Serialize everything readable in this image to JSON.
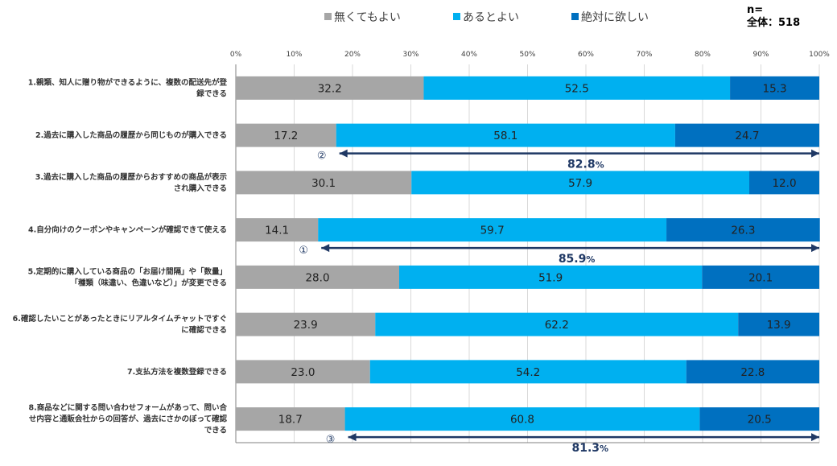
{
  "chart_data": {
    "type": "bar",
    "orientation": "horizontal",
    "stacked": "percent",
    "title": "",
    "sample": {
      "label": "n=",
      "group": "全体：518"
    },
    "xlabel": "",
    "ylabel": "",
    "xlim": [
      0,
      100
    ],
    "x_ticks": [
      "0%",
      "10%",
      "20%",
      "30%",
      "40%",
      "50%",
      "60%",
      "70%",
      "80%",
      "90%",
      "100%"
    ],
    "grid": true,
    "legend_position": "top",
    "categories": [
      [
        "1.親類、知人に贈り物ができるように、複数の配送先が登",
        "録できる"
      ],
      [
        "2.過去に購入した商品の履歴から同じものが購入できる"
      ],
      [
        "3.過去に購入した商品の履歴からおすすめの商品が表示",
        "され購入できる"
      ],
      [
        "4.自分向けのクーポンやキャンペーンが確認できて使える"
      ],
      [
        "5.定期的に購入している商品の「お届け間隔」や「数量」",
        "「種類（味違い、色違いなど）」が変更できる"
      ],
      [
        "6.確認したいことがあったときにリアルタイムチャットですぐ",
        "に確認できる"
      ],
      [
        "7.支払方法を複数登録できる"
      ],
      [
        "8.商品などに関する問い合わせフォームがあって、問い合",
        "せ内容と通販会社からの回答が、過去にさかのぼって確認",
        "できる"
      ]
    ],
    "series": [
      {
        "name": "無くてもよい",
        "color": "#a6a6a6",
        "values": [
          32.2,
          17.2,
          30.1,
          14.1,
          28.0,
          23.9,
          23.0,
          18.7
        ]
      },
      {
        "name": "あるとよい",
        "color": "#00b0f0",
        "values": [
          52.5,
          58.1,
          57.9,
          59.7,
          51.9,
          62.2,
          54.2,
          60.8
        ]
      },
      {
        "name": "絶対に欲しい",
        "color": "#0070c0",
        "values": [
          15.3,
          24.7,
          12.0,
          26.3,
          20.1,
          13.9,
          22.8,
          20.5
        ]
      }
    ],
    "value_labels": [
      [
        "32.2",
        "52.5",
        "15.3"
      ],
      [
        "17.2",
        "58.1",
        "24.7"
      ],
      [
        "30.1",
        "57.9",
        "12.0"
      ],
      [
        "14.1",
        "59.7",
        "26.3"
      ],
      [
        "28.0",
        "51.9",
        "20.1"
      ],
      [
        "23.9",
        "62.2",
        "13.9"
      ],
      [
        "23.0",
        "54.2",
        "22.8"
      ],
      [
        "18.7",
        "60.8",
        "20.5"
      ]
    ],
    "annotations": [
      {
        "row": 1,
        "rank": "②",
        "from": 17.2,
        "to": 100,
        "value": "82.8",
        "unit": "%"
      },
      {
        "row": 3,
        "rank": "①",
        "from": 14.1,
        "to": 100,
        "value": "85.9",
        "unit": "%"
      },
      {
        "row": 7,
        "rank": "③",
        "from": 18.7,
        "to": 100,
        "value": "81.3",
        "unit": "%"
      }
    ],
    "annotation_color": "#1f3864"
  }
}
